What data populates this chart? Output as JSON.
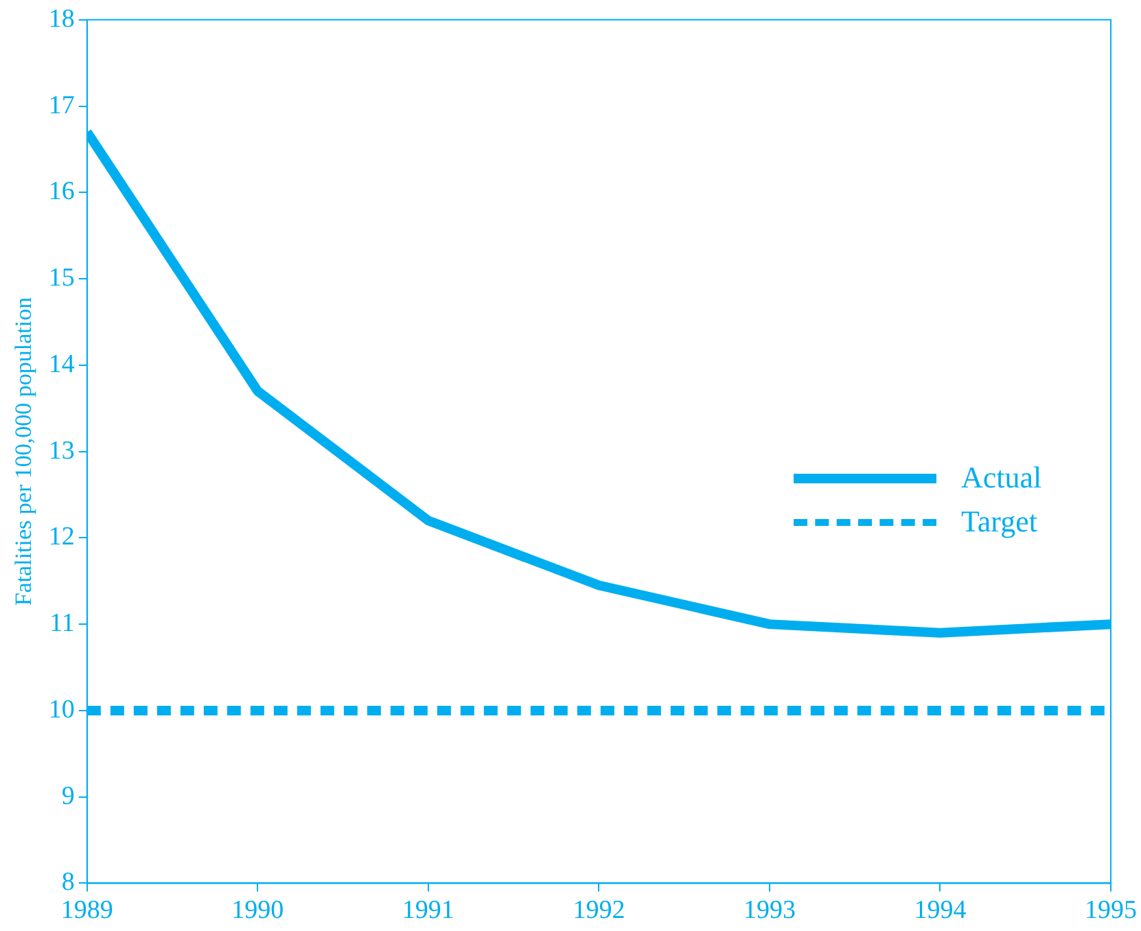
{
  "chart_data": {
    "type": "line",
    "ylabel": "Fatalities per 100,000 population",
    "x": [
      1989,
      1990,
      1991,
      1992,
      1993,
      1994,
      1995
    ],
    "series": [
      {
        "name": "Actual",
        "color": "#00aeef",
        "values": [
          16.7,
          13.7,
          12.2,
          11.45,
          11.0,
          10.9,
          11.0
        ],
        "line_style": "solid"
      },
      {
        "name": "Target",
        "color": "#00aeef",
        "values": [
          10,
          10,
          10,
          10,
          10,
          10,
          10
        ],
        "line_style": "dashed"
      }
    ],
    "xlim": [
      1989,
      1995
    ],
    "xticks": [
      1989,
      1990,
      1991,
      1992,
      1993,
      1994,
      1995
    ],
    "ylim": [
      8,
      18
    ],
    "yticks": [
      8,
      9,
      10,
      11,
      12,
      13,
      14,
      15,
      16,
      17,
      18
    ],
    "grid": false,
    "legend": "right",
    "marker": "none"
  }
}
